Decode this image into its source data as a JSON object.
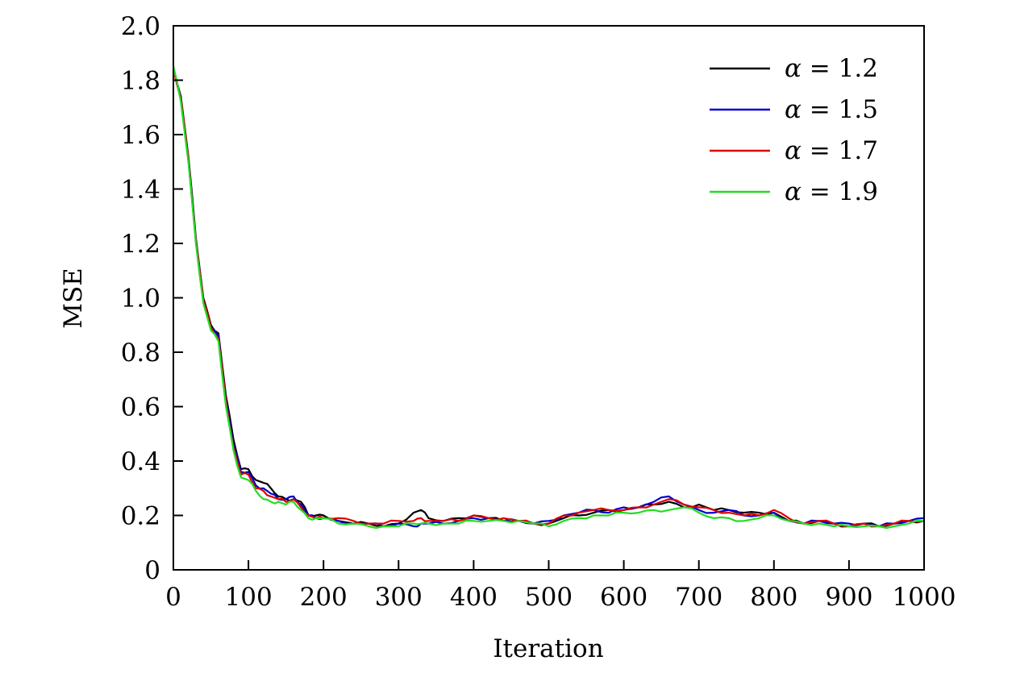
{
  "chart_data": {
    "type": "line",
    "title": "",
    "xlabel": "Iteration",
    "ylabel": "MSE",
    "xlim": [
      0,
      1000
    ],
    "ylim": [
      0,
      2.0
    ],
    "x_ticks": [
      "0",
      "100",
      "200",
      "300",
      "400",
      "500",
      "600",
      "700",
      "800",
      "900",
      "1000"
    ],
    "y_ticks": [
      "0",
      "0.2",
      "0.4",
      "0.6",
      "0.8",
      "1.0",
      "1.2",
      "1.4",
      "1.6",
      "1.8",
      "2.0"
    ],
    "grid": false,
    "legend_position": "top-right",
    "x": [
      0,
      10,
      20,
      30,
      40,
      50,
      60,
      70,
      80,
      90,
      100,
      110,
      120,
      130,
      140,
      150,
      160,
      170,
      180,
      190,
      200,
      220,
      240,
      260,
      280,
      300,
      320,
      330,
      340,
      360,
      380,
      400,
      420,
      440,
      460,
      480,
      500,
      520,
      540,
      560,
      580,
      600,
      620,
      640,
      660,
      680,
      700,
      720,
      740,
      760,
      780,
      800,
      820,
      840,
      860,
      880,
      900,
      920,
      940,
      960,
      980,
      1000
    ],
    "series": [
      {
        "name": "α = 1.2",
        "color": "#000000",
        "values": [
          1.85,
          1.74,
          1.52,
          1.22,
          1.0,
          0.9,
          0.87,
          0.64,
          0.48,
          0.37,
          0.37,
          0.33,
          0.32,
          0.3,
          0.27,
          0.26,
          0.26,
          0.25,
          0.2,
          0.2,
          0.2,
          0.18,
          0.17,
          0.17,
          0.16,
          0.17,
          0.21,
          0.22,
          0.19,
          0.18,
          0.19,
          0.2,
          0.19,
          0.18,
          0.18,
          0.17,
          0.17,
          0.19,
          0.2,
          0.21,
          0.22,
          0.22,
          0.23,
          0.24,
          0.25,
          0.23,
          0.24,
          0.22,
          0.22,
          0.21,
          0.21,
          0.21,
          0.18,
          0.17,
          0.18,
          0.17,
          0.16,
          0.17,
          0.16,
          0.17,
          0.18,
          0.18
        ]
      },
      {
        "name": "α = 1.5",
        "color": "#0000cc",
        "values": [
          1.84,
          1.73,
          1.51,
          1.21,
          0.99,
          0.89,
          0.86,
          0.63,
          0.46,
          0.36,
          0.36,
          0.31,
          0.3,
          0.28,
          0.26,
          0.26,
          0.27,
          0.24,
          0.2,
          0.19,
          0.19,
          0.18,
          0.17,
          0.17,
          0.16,
          0.17,
          0.16,
          0.17,
          0.17,
          0.17,
          0.18,
          0.19,
          0.19,
          0.18,
          0.18,
          0.17,
          0.18,
          0.2,
          0.21,
          0.22,
          0.21,
          0.23,
          0.23,
          0.25,
          0.27,
          0.24,
          0.22,
          0.21,
          0.22,
          0.2,
          0.2,
          0.21,
          0.18,
          0.17,
          0.18,
          0.17,
          0.17,
          0.17,
          0.16,
          0.17,
          0.18,
          0.19
        ]
      },
      {
        "name": "α = 1.7",
        "color": "#dd0000",
        "values": [
          1.84,
          1.73,
          1.51,
          1.21,
          0.99,
          0.89,
          0.85,
          0.62,
          0.45,
          0.35,
          0.35,
          0.3,
          0.29,
          0.27,
          0.26,
          0.25,
          0.26,
          0.23,
          0.2,
          0.19,
          0.19,
          0.19,
          0.18,
          0.17,
          0.17,
          0.18,
          0.18,
          0.19,
          0.18,
          0.18,
          0.18,
          0.2,
          0.19,
          0.19,
          0.18,
          0.17,
          0.17,
          0.2,
          0.21,
          0.22,
          0.22,
          0.22,
          0.23,
          0.24,
          0.26,
          0.24,
          0.23,
          0.22,
          0.21,
          0.2,
          0.2,
          0.22,
          0.19,
          0.17,
          0.18,
          0.17,
          0.16,
          0.17,
          0.16,
          0.17,
          0.18,
          0.18
        ]
      },
      {
        "name": "α = 1.9",
        "color": "#22dd22",
        "values": [
          1.85,
          1.72,
          1.5,
          1.2,
          0.98,
          0.88,
          0.84,
          0.6,
          0.44,
          0.34,
          0.33,
          0.29,
          0.26,
          0.25,
          0.25,
          0.24,
          0.25,
          0.22,
          0.19,
          0.19,
          0.19,
          0.17,
          0.17,
          0.16,
          0.16,
          0.16,
          0.17,
          0.17,
          0.17,
          0.17,
          0.17,
          0.18,
          0.18,
          0.18,
          0.18,
          0.17,
          0.16,
          0.18,
          0.19,
          0.2,
          0.2,
          0.21,
          0.21,
          0.22,
          0.22,
          0.23,
          0.21,
          0.19,
          0.19,
          0.18,
          0.19,
          0.2,
          0.18,
          0.17,
          0.17,
          0.16,
          0.16,
          0.16,
          0.16,
          0.16,
          0.17,
          0.18
        ]
      }
    ],
    "legend": [
      {
        "symbol": "α",
        "text": " = 1.2"
      },
      {
        "symbol": "α",
        "text": " = 1.5"
      },
      {
        "symbol": "α",
        "text": " = 1.7"
      },
      {
        "symbol": "α",
        "text": " = 1.9"
      }
    ]
  }
}
